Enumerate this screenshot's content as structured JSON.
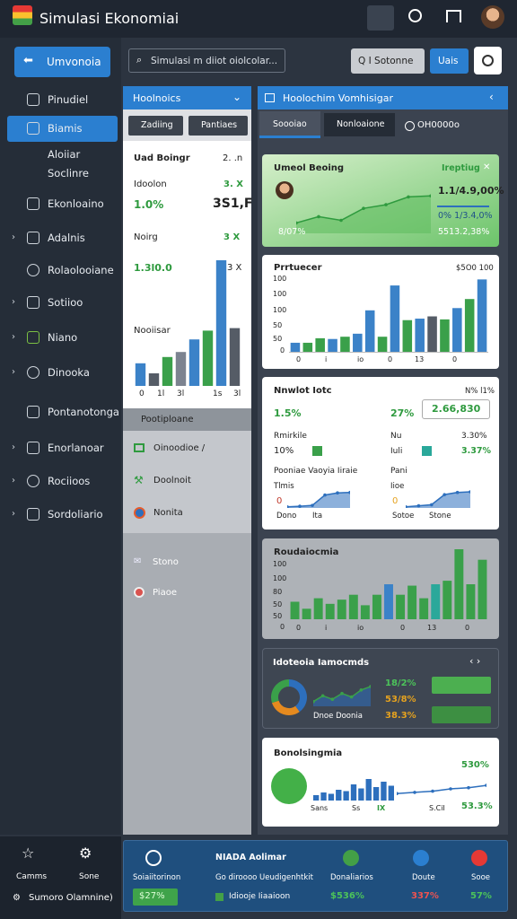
{
  "header": {
    "title": "Simulasi Ekonomiai"
  },
  "sidebar": {
    "button": "Umvonoia",
    "items": [
      "Pinudiel",
      "Biamis",
      "Aloiiar",
      "Soclinre",
      "Ekonloaino",
      "Adalnis",
      "Rolaolooiane",
      "Sotiioo",
      "Niano",
      "Dinooka",
      "Pontanotonga",
      "Enorlanoar",
      "Rociioos",
      "Sordoliario"
    ],
    "bottom": [
      "Camms",
      "Sone",
      "Sumoro Olamnine)"
    ]
  },
  "toolbar": {
    "search": "Simulasi m diiot oiolcolar...",
    "button1": "Q I Sotonne",
    "button2": "Uais"
  },
  "left_panel": {
    "title": "Hoolnoics",
    "tabs": [
      "Zadiing",
      "Pantiaes"
    ],
    "card": {
      "rows": [
        [
          "Uad Boingr",
          "2. .n"
        ],
        [
          "Idoolon",
          "3. X"
        ],
        [
          "1.0%",
          "3S1,F"
        ],
        [
          "Noirg",
          "3 X"
        ],
        [
          "1.3l0.0",
          "3 X"
        ]
      ],
      "chart_label": "Nooiisar",
      "chart": {
        "type": "bar",
        "ylim": [
          0,
          100
        ],
        "values": [
          18,
          10,
          23,
          27,
          37,
          44,
          100,
          46
        ],
        "colors": [
          "#3b82c8",
          "#555c66",
          "#3aa04a",
          "#7c8390",
          "#3b82c8",
          "#3aa04a",
          "#3b82c8",
          "#555c66"
        ]
      },
      "x_labels": [
        "0",
        "1l",
        "3l",
        "1s",
        "3l"
      ]
    },
    "section": "Pootiploane",
    "list": [
      "Oinoodioe /",
      "Doolnoit",
      "Nonita"
    ],
    "extra": [
      "Stono",
      "Piaoe"
    ]
  },
  "right_panel": {
    "title": "Hoolochim Vomhisigar",
    "tabs": [
      "Soooiao",
      "Nonloaione",
      "OH0000o"
    ],
    "summary": {
      "title": "Umeol Beoing",
      "badge": "Ireptiug",
      "values": [
        "1.1/4.9,00%",
        "0% 1/3.4,0%",
        "5513.2,38%",
        "8/07%"
      ],
      "chart": {
        "type": "area",
        "ylim": [
          0,
          100
        ],
        "values": [
          20,
          32,
          25,
          48,
          55,
          70,
          72
        ],
        "color": "#2e9a3e",
        "fill": "#5cbc5c"
      }
    },
    "production": {
      "title": "Prrtuecer",
      "note": "$5O0 100",
      "y_labels": [
        "100",
        "100",
        "100",
        "50",
        "50",
        "0"
      ],
      "chart": {
        "type": "bar",
        "ylim": [
          0,
          100
        ],
        "values": [
          12,
          12,
          18,
          17,
          20,
          24,
          55,
          20,
          88,
          42,
          44,
          47,
          43,
          58,
          70,
          96
        ],
        "colors": [
          "#3b82c8",
          "#3aa04a",
          "#3aa04a",
          "#3b82c8",
          "#3aa04a",
          "#3b82c8",
          "#3b82c8",
          "#3aa04a",
          "#3b82c8",
          "#3aa04a",
          "#3b82c8",
          "#555c66",
          "#3aa04a",
          "#3b82c8",
          "#3aa04a",
          "#3b82c8"
        ]
      },
      "x_labels": [
        "0",
        "i",
        "io",
        "0",
        "13",
        "0"
      ]
    },
    "market": {
      "title": "Nnwlot Iotc",
      "note": "N% l1%",
      "row1": [
        "1.5%",
        "27%",
        "2.66,830"
      ],
      "row2": [
        "Rmirkile",
        "Nu",
        "3.30%"
      ],
      "row3": [
        "10%",
        "Iuli",
        "3.37%"
      ],
      "row4": [
        "Pooniae Vaoyia Iiraie",
        "Pani"
      ],
      "row5": [
        "Tlmis",
        "Iioe"
      ],
      "chart_a": {
        "type": "area",
        "ylim": [
          0,
          100
        ],
        "values": [
          5,
          8,
          12,
          60,
          70,
          72
        ],
        "color": "#2d6fbd",
        "fill": "#2d6fbd"
      },
      "chart_b": {
        "type": "area",
        "ylim": [
          0,
          100
        ],
        "values": [
          5,
          10,
          15,
          62,
          72,
          75
        ],
        "color": "#2d6fbd",
        "fill": "#2d6fbd"
      },
      "labels_a": [
        "0",
        "Dono",
        "Ita"
      ],
      "labels_b": [
        "0",
        "Sotoe",
        "Stone"
      ]
    },
    "distribution": {
      "title": "Roudaiocmia",
      "y_labels": [
        "100",
        "100",
        "80",
        "50",
        "50",
        "0"
      ],
      "chart": {
        "type": "bar",
        "ylim": [
          0,
          100
        ],
        "values": [
          25,
          15,
          30,
          22,
          28,
          35,
          20,
          35,
          50,
          35,
          48,
          30,
          50,
          55,
          100,
          50,
          85
        ],
        "colors": [
          "#3aa04a",
          "#3aa04a",
          "#3aa04a",
          "#3aa04a",
          "#3aa04a",
          "#3aa04a",
          "#3aa04a",
          "#3aa04a",
          "#3b82c8",
          "#3aa04a",
          "#3aa04a",
          "#3aa04a",
          "#2aa89a",
          "#3aa04a",
          "#3aa04a",
          "#3aa04a",
          "#3aa04a"
        ]
      },
      "x_labels": [
        "0",
        "i",
        "io",
        "0",
        "13",
        "0"
      ]
    },
    "indicators": {
      "title": "Idoteoia Iamocmds",
      "donut": {
        "type": "donut",
        "values": [
          40,
          30,
          30
        ],
        "colors": [
          "#2d6fbd",
          "#e58a1f",
          "#3aa04a"
        ]
      },
      "line": {
        "type": "area",
        "ylim": [
          0,
          100
        ],
        "values": [
          20,
          45,
          30,
          55,
          40,
          70,
          85
        ],
        "color": "#3aa04a",
        "fill": "#2d6fbd"
      },
      "caption": "Dnoe Doonia",
      "values": [
        "18/2%",
        "53/8%",
        "38.3%"
      ]
    },
    "balance": {
      "title": "Bonolsingmia",
      "chart": {
        "type": "bar",
        "ylim": [
          0,
          100
        ],
        "values": [
          20,
          30,
          25,
          40,
          35,
          60,
          45,
          80,
          50,
          70,
          55
        ],
        "colors": [
          "#2d6fbd",
          "#2d6fbd",
          "#2d6fbd",
          "#2d6fbd",
          "#2d6fbd",
          "#2d6fbd",
          "#2d6fbd",
          "#2d6fbd",
          "#2d6fbd",
          "#2d6fbd",
          "#2d6fbd"
        ]
      },
      "line": {
        "type": "area",
        "ylim": [
          0,
          100
        ],
        "values": [
          30,
          35,
          40,
          50,
          55,
          65
        ],
        "color": "#2d6fbd",
        "fill": "none"
      },
      "values": [
        "530%",
        "53.3%"
      ],
      "x_labels": [
        "Sans",
        "Ss",
        "IX",
        "S.CiI"
      ]
    }
  },
  "footer": {
    "labels": [
      "Soiaiitorinon",
      "NIADA Aolimar",
      "Go diroooo Ueudigenhtkit",
      "Donaliarios",
      "Doute",
      "Sooe"
    ],
    "values": [
      "$27%",
      "Idiooje Iiaaioon",
      "$536%",
      "337%",
      "57%"
    ]
  }
}
